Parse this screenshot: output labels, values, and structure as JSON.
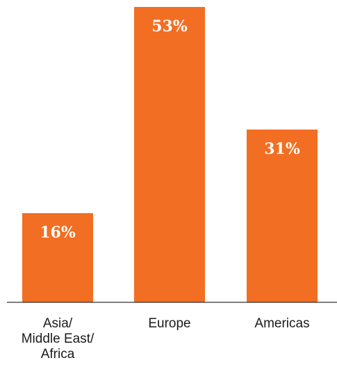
{
  "chart_data": {
    "type": "bar",
    "categories": [
      [
        "Asia/",
        "Middle East/",
        "Africa"
      ],
      [
        "Europe"
      ],
      [
        "Americas"
      ]
    ],
    "values": [
      16,
      53,
      31
    ],
    "value_labels": [
      "16%",
      "53%",
      "31%"
    ],
    "ylim": [
      0,
      53
    ],
    "title": "",
    "xlabel": "",
    "ylabel": "",
    "grid": false,
    "legend": "none"
  },
  "colors": {
    "bar": "#f26e22",
    "axis": "#333333",
    "text": "#1a1a1a"
  }
}
